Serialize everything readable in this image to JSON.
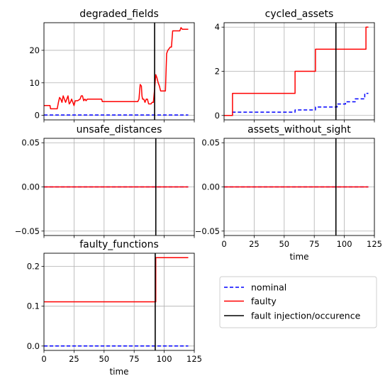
{
  "colors": {
    "nominal": "#0000ff",
    "faulty": "#ff0000",
    "fault": "#000000"
  },
  "legend": {
    "placement": "bottom-right",
    "entries": [
      {
        "key": "nominal",
        "label": "nominal",
        "style": "dashed"
      },
      {
        "key": "faulty",
        "label": "faulty",
        "style": "solid"
      },
      {
        "key": "fault",
        "label": "fault injection/occurence",
        "style": "solid"
      }
    ]
  },
  "chart_data": [
    {
      "type": "line",
      "title": "degraded_fields",
      "xlabel": "",
      "ylabel": "",
      "xlim": [
        0,
        125
      ],
      "ylim": [
        -1.4,
        28.5
      ],
      "xticks": [
        0,
        25,
        50,
        75,
        100,
        125
      ],
      "yticks": [
        0,
        10,
        20
      ],
      "show_xticklabels": false,
      "grid": true,
      "fault_x": 92,
      "series": [
        {
          "key": "nominal",
          "name": "nominal",
          "style": "dashed",
          "step": true,
          "points": [
            [
              0,
              0.1
            ],
            [
              120,
              0.1
            ]
          ]
        },
        {
          "key": "faulty",
          "name": "faulty",
          "style": "solid",
          "step": false,
          "points": [
            [
              0,
              3
            ],
            [
              5,
              3
            ],
            [
              5.5,
              2
            ],
            [
              11,
              2
            ],
            [
              12,
              4
            ],
            [
              13,
              5.5
            ],
            [
              14,
              5
            ],
            [
              15,
              4
            ],
            [
              16,
              6
            ],
            [
              17,
              5
            ],
            [
              18,
              4
            ],
            [
              19,
              5
            ],
            [
              20,
              6
            ],
            [
              21,
              3.5
            ],
            [
              22,
              4
            ],
            [
              23,
              5
            ],
            [
              24,
              4
            ],
            [
              25,
              3
            ],
            [
              26,
              4.5
            ],
            [
              28,
              4.5
            ],
            [
              30,
              5
            ],
            [
              31,
              6
            ],
            [
              32,
              6
            ],
            [
              33,
              4.5
            ],
            [
              34,
              5
            ],
            [
              35,
              4.5
            ],
            [
              36,
              5
            ],
            [
              38,
              5
            ],
            [
              40,
              5
            ],
            [
              45,
              5
            ],
            [
              48,
              5
            ],
            [
              48.5,
              4.2
            ],
            [
              60,
              4.2
            ],
            [
              70,
              4.2
            ],
            [
              78,
              4.2
            ],
            [
              79,
              5
            ],
            [
              80,
              9.5
            ],
            [
              81,
              9
            ],
            [
              81.5,
              6
            ],
            [
              82,
              5
            ],
            [
              83,
              5
            ],
            [
              84,
              4
            ],
            [
              85,
              5
            ],
            [
              86,
              5
            ],
            [
              87,
              3.5
            ],
            [
              88,
              3.5
            ],
            [
              89,
              3.5
            ],
            [
              90,
              4
            ],
            [
              91,
              4
            ],
            [
              92,
              8
            ],
            [
              93,
              12.5
            ],
            [
              94,
              11.5
            ],
            [
              95,
              10
            ],
            [
              96,
              9
            ],
            [
              97,
              7.5
            ],
            [
              101,
              7.5
            ],
            [
              102,
              19
            ],
            [
              103,
              20
            ],
            [
              104,
              20.5
            ],
            [
              105,
              21
            ],
            [
              106,
              21
            ],
            [
              107,
              26
            ],
            [
              113,
              26
            ],
            [
              114,
              27
            ],
            [
              115,
              26.5
            ],
            [
              120,
              26.5
            ]
          ]
        }
      ]
    },
    {
      "type": "line",
      "title": "cycled_assets",
      "xlabel": "",
      "ylabel": "",
      "xlim": [
        0,
        125
      ],
      "ylim": [
        -0.2,
        4.2
      ],
      "xticks": [
        0,
        25,
        50,
        75,
        100,
        125
      ],
      "yticks": [
        0,
        2,
        4
      ],
      "show_xticklabels": false,
      "grid": true,
      "fault_x": 93,
      "series": [
        {
          "key": "nominal",
          "name": "nominal",
          "style": "dashed",
          "step": true,
          "points": [
            [
              0,
              0
            ],
            [
              6,
              0
            ],
            [
              7,
              0.15
            ],
            [
              58,
              0.15
            ],
            [
              59,
              0.25
            ],
            [
              75,
              0.25
            ],
            [
              76,
              0.38
            ],
            [
              93,
              0.38
            ],
            [
              94,
              0.52
            ],
            [
              100,
              0.52
            ],
            [
              101,
              0.62
            ],
            [
              108,
              0.62
            ],
            [
              109,
              0.75
            ],
            [
              115,
              0.75
            ],
            [
              117,
              1.0
            ],
            [
              120,
              1.0
            ]
          ]
        },
        {
          "key": "faulty",
          "name": "faulty",
          "style": "solid",
          "step": true,
          "points": [
            [
              0,
              0
            ],
            [
              6,
              0
            ],
            [
              7,
              1
            ],
            [
              58,
              1
            ],
            [
              59,
              2
            ],
            [
              75,
              2
            ],
            [
              76,
              3
            ],
            [
              117,
              3
            ],
            [
              118,
              4
            ],
            [
              120,
              4
            ]
          ]
        }
      ]
    },
    {
      "type": "line",
      "title": "unsafe_distances",
      "xlabel": "",
      "ylabel": "",
      "xlim": [
        0,
        125
      ],
      "ylim": [
        -0.055,
        0.055
      ],
      "xticks": [
        0,
        25,
        50,
        75,
        100,
        125
      ],
      "yticks": [
        -0.05,
        0.0,
        0.05
      ],
      "ytick_labels": [
        "−0.05",
        "0.00",
        "0.05"
      ],
      "show_xticklabels": false,
      "grid": true,
      "fault_x": 93,
      "series": [
        {
          "key": "nominal",
          "name": "nominal",
          "style": "dashed",
          "step": true,
          "points": [
            [
              0,
              0
            ],
            [
              120,
              0
            ]
          ]
        },
        {
          "key": "faulty",
          "name": "faulty",
          "style": "solid",
          "step": true,
          "points": [
            [
              0,
              0
            ],
            [
              120,
              0
            ]
          ]
        }
      ]
    },
    {
      "type": "line",
      "title": "assets_without_sight",
      "xlabel": "time",
      "ylabel": "",
      "xlim": [
        0,
        125
      ],
      "ylim": [
        -0.055,
        0.055
      ],
      "xticks": [
        0,
        25,
        50,
        75,
        100,
        125
      ],
      "yticks": [
        -0.05,
        0.0,
        0.05
      ],
      "ytick_labels": [
        "−0.05",
        "0.00",
        "0.05"
      ],
      "show_xticklabels": true,
      "grid": true,
      "fault_x": 93,
      "series": [
        {
          "key": "nominal",
          "name": "nominal",
          "style": "dashed",
          "step": true,
          "points": [
            [
              0,
              0
            ],
            [
              120,
              0
            ]
          ]
        },
        {
          "key": "faulty",
          "name": "faulty",
          "style": "solid",
          "step": true,
          "points": [
            [
              0,
              0
            ],
            [
              120,
              0
            ]
          ]
        }
      ]
    },
    {
      "type": "line",
      "title": "faulty_functions",
      "xlabel": "time",
      "ylabel": "",
      "xlim": [
        0,
        125
      ],
      "ylim": [
        -0.011,
        0.233
      ],
      "xticks": [
        0,
        25,
        50,
        75,
        100,
        125
      ],
      "yticks": [
        0.0,
        0.1,
        0.2
      ],
      "ytick_labels": [
        "0.0",
        "0.1",
        "0.2"
      ],
      "show_xticklabels": true,
      "grid": true,
      "fault_x": 92.5,
      "series": [
        {
          "key": "nominal",
          "name": "nominal",
          "style": "dashed",
          "step": true,
          "points": [
            [
              0,
              0
            ],
            [
              120,
              0
            ]
          ]
        },
        {
          "key": "faulty",
          "name": "faulty",
          "style": "solid",
          "step": true,
          "points": [
            [
              0,
              0.111
            ],
            [
              92.5,
              0.111
            ],
            [
              93,
              0.222
            ],
            [
              120,
              0.222
            ]
          ]
        }
      ]
    }
  ]
}
